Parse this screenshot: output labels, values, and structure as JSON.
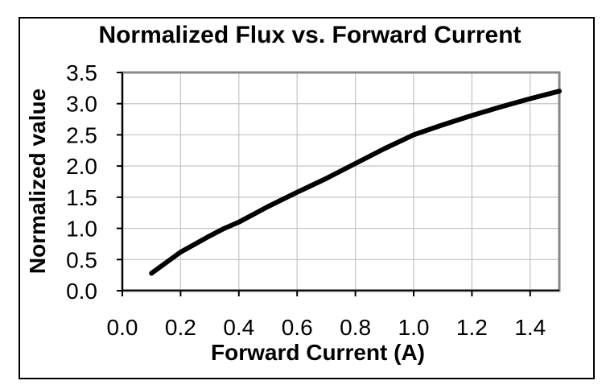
{
  "chart_data": {
    "type": "line",
    "title": "Normalized Flux vs. Forward Current",
    "xlabel": "Forward Current (A)",
    "ylabel": "Normalized value",
    "xlim": [
      0,
      1.5
    ],
    "ylim": [
      0,
      3.5
    ],
    "x_ticks": [
      0.0,
      0.2,
      0.4,
      0.6,
      0.8,
      1.0,
      1.2,
      1.4
    ],
    "x_tick_labels": [
      "0.0",
      "0.2",
      "0.4",
      "0.6",
      "0.8",
      "1.0",
      "1.2",
      "1.4"
    ],
    "y_ticks": [
      0.0,
      0.5,
      1.0,
      1.5,
      2.0,
      2.5,
      3.0,
      3.5
    ],
    "y_tick_labels": [
      "0.0",
      "0.5",
      "1.0",
      "1.5",
      "2.0",
      "2.5",
      "3.0",
      "3.5"
    ],
    "grid": true,
    "legend": false,
    "series": [
      {
        "name": "Normalized flux",
        "x": [
          0.1,
          0.2,
          0.3,
          0.35,
          0.4,
          0.5,
          0.6,
          0.7,
          0.8,
          0.9,
          1.0,
          1.1,
          1.2,
          1.3,
          1.4,
          1.5
        ],
        "y": [
          0.28,
          0.62,
          0.88,
          1.0,
          1.1,
          1.35,
          1.58,
          1.8,
          2.04,
          2.28,
          2.5,
          2.66,
          2.81,
          2.95,
          3.08,
          3.2
        ]
      }
    ]
  },
  "colors": {
    "background": "#ffffff",
    "outer_border": "#000000",
    "plot_border": "#878787",
    "gridline": "#c4c4c4",
    "axis": "#000000",
    "curve": "#000000",
    "text": "#000000"
  }
}
